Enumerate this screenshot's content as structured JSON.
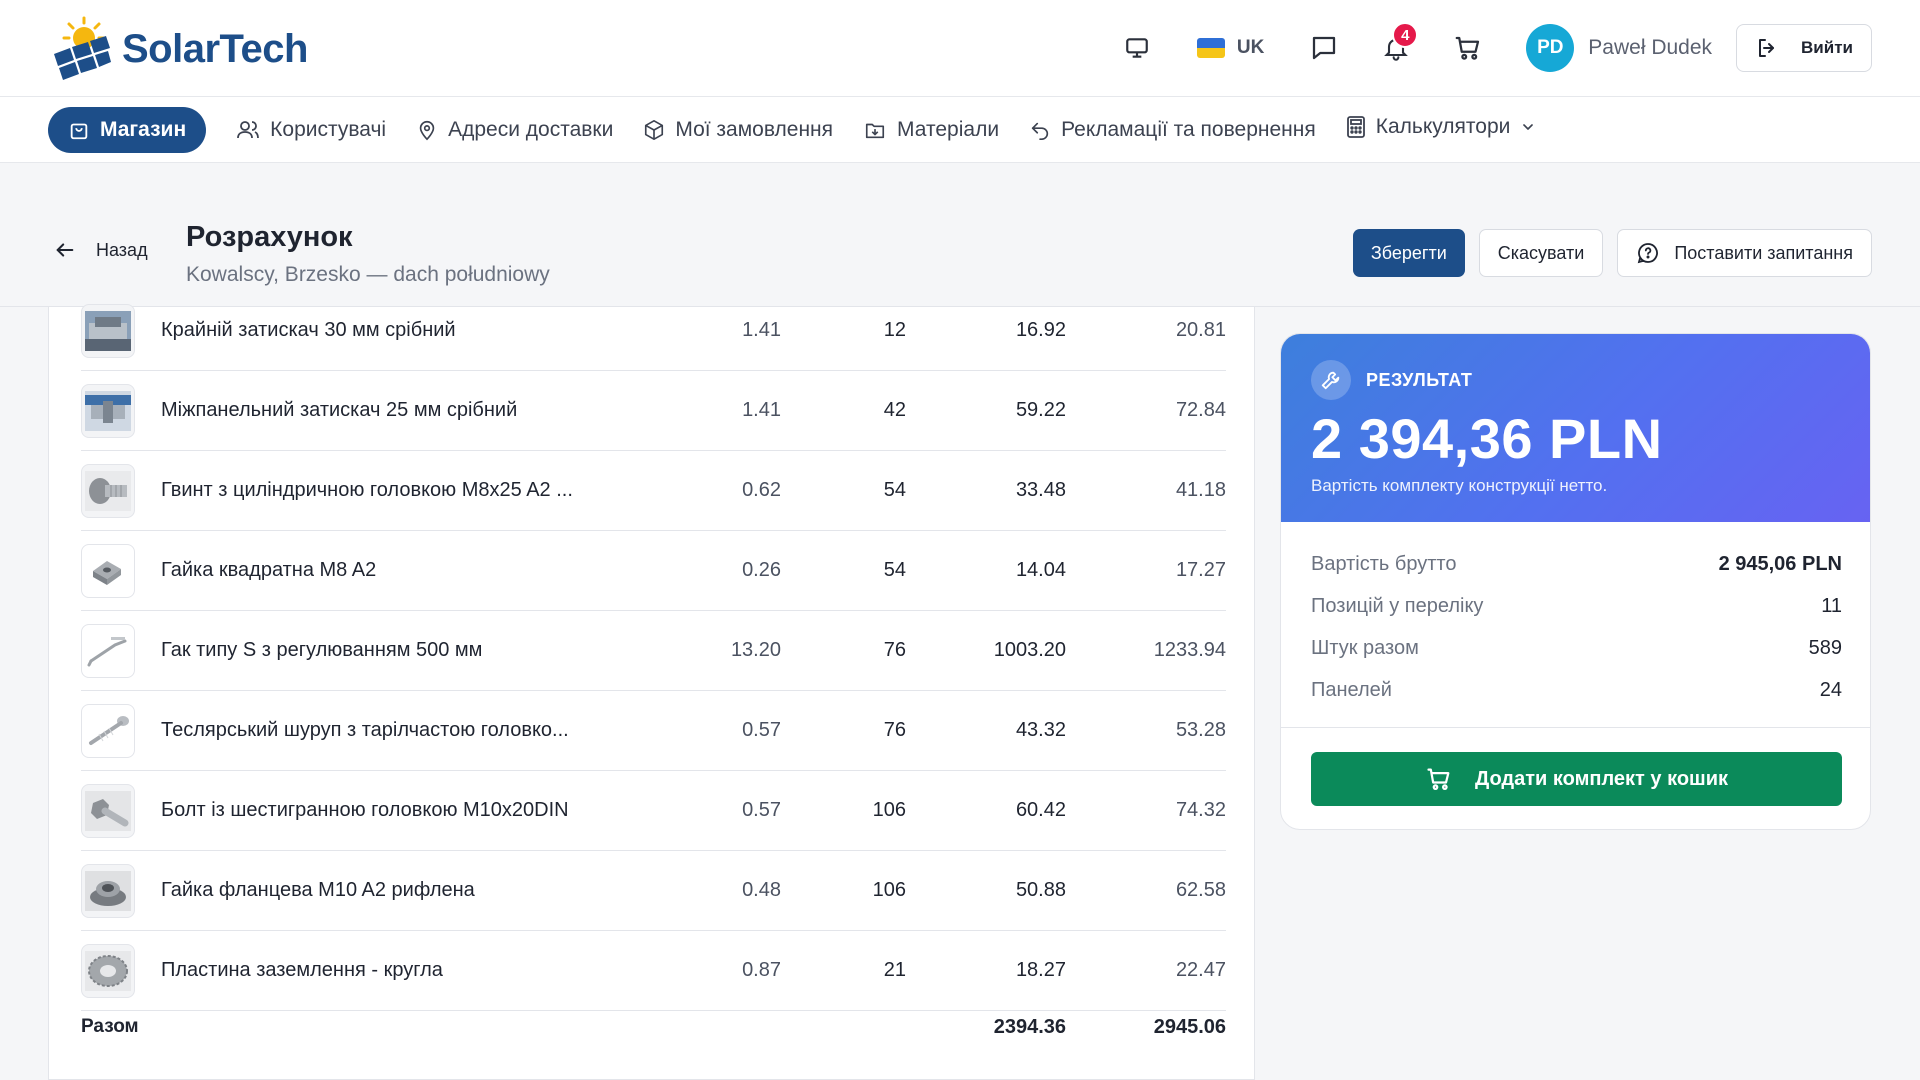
{
  "brand": {
    "name": "SolarTech"
  },
  "header": {
    "language": "UK",
    "notifications_count": "4",
    "user_initials": "PD",
    "user_name": "Paweł Dudek",
    "logout_label": "Вийти"
  },
  "nav": {
    "items": [
      {
        "label": "Магазин",
        "icon": "shop-bag-icon",
        "active": true
      },
      {
        "label": "Користувачі",
        "icon": "users-icon"
      },
      {
        "label": "Адреси доставки",
        "icon": "map-pin-icon"
      },
      {
        "label": "Мої замовлення",
        "icon": "package-icon"
      },
      {
        "label": "Матеріали",
        "icon": "folder-download-icon"
      },
      {
        "label": "Рекламації та повернення",
        "icon": "return-arrow-icon"
      },
      {
        "label": "Калькулятори",
        "icon": "calculator-icon"
      }
    ]
  },
  "page": {
    "back_label": "Назад",
    "title": "Розрахунок",
    "subtitle": "Kowalscy, Brzesko — dach południowy",
    "save_label": "Зберегти",
    "cancel_label": "Скасувати",
    "ask_label": "Поставити запитання"
  },
  "table": {
    "rows": [
      {
        "name": "Крайній затискач 30 мм срібний",
        "price": "1.41",
        "qty": "12",
        "net": "16.92",
        "gross": "20.81",
        "thumb": "end-clamp"
      },
      {
        "name": "Міжпанельний затискач 25 мм срібний",
        "price": "1.41",
        "qty": "42",
        "net": "59.22",
        "gross": "72.84",
        "thumb": "mid-clamp"
      },
      {
        "name": "Гвинт з циліндричною головкою M8x25 A2 ...",
        "price": "0.62",
        "qty": "54",
        "net": "33.48",
        "gross": "41.18",
        "thumb": "screw"
      },
      {
        "name": "Гайка квадратна M8 A2",
        "price": "0.26",
        "qty": "54",
        "net": "14.04",
        "gross": "17.27",
        "thumb": "square-nut"
      },
      {
        "name": "Гак типу S з регулюванням 500 мм",
        "price": "13.20",
        "qty": "76",
        "net": "1003.20",
        "gross": "1233.94",
        "thumb": "hook"
      },
      {
        "name": "Теслярський шуруп з тарілчастою головко...",
        "price": "0.57",
        "qty": "76",
        "net": "43.32",
        "gross": "53.28",
        "thumb": "wood-screw"
      },
      {
        "name": "Болт із шестигранною головкою M10x20DIN",
        "price": "0.57",
        "qty": "106",
        "net": "60.42",
        "gross": "74.32",
        "thumb": "bolt"
      },
      {
        "name": "Гайка фланцева M10 A2 рифлена",
        "price": "0.48",
        "qty": "106",
        "net": "50.88",
        "gross": "62.58",
        "thumb": "flange-nut"
      },
      {
        "name": "Пластина заземлення - кругла",
        "price": "0.87",
        "qty": "21",
        "net": "18.27",
        "gross": "22.47",
        "thumb": "grounding-washer"
      }
    ],
    "total_label": "Разом",
    "total_net": "2394.36",
    "total_gross": "2945.06"
  },
  "result": {
    "label": "РЕЗУЛЬТАТ",
    "value": "2 394,36 PLN",
    "description": "Вартість комплекту конструкції нетто.",
    "stats": [
      {
        "key": "Вартість брутто",
        "value": "2 945,06 PLN"
      },
      {
        "key": "Позицій у переліку",
        "value": "11"
      },
      {
        "key": "Штук разом",
        "value": "589"
      },
      {
        "key": "Панелей",
        "value": "24"
      }
    ],
    "cart_button_label": "Додати комплект у кошик"
  },
  "colors": {
    "brand": "#1d4e89",
    "accent_green": "#0b8a5a",
    "badge_red": "#e5194a",
    "result_gradient_start": "#3d7fdc",
    "result_gradient_end": "#6763f2"
  }
}
